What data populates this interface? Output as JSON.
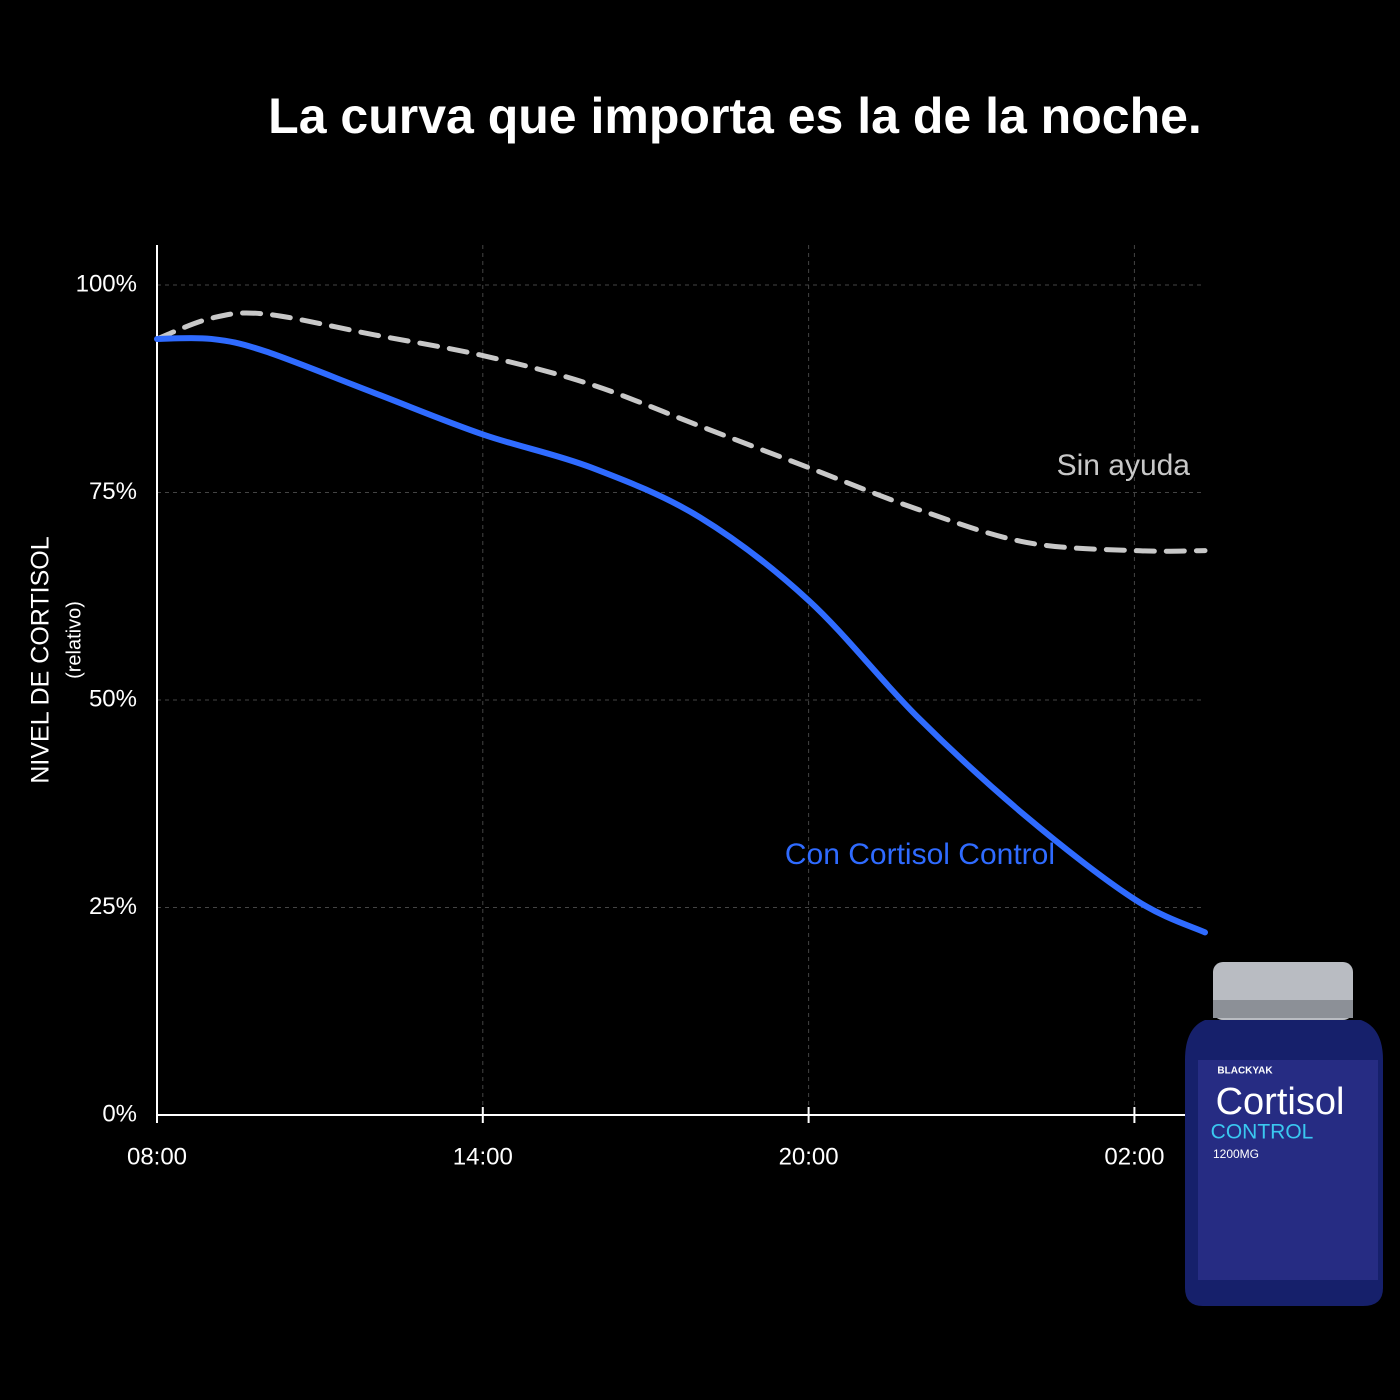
{
  "chart_data": {
    "type": "line",
    "title": "La curva que importa es la de la noche.",
    "y_label": "NIVEL DE CORTISOL",
    "y_sublabel": "(relativo)",
    "x": [
      0,
      1,
      2,
      4,
      6,
      8,
      10,
      12,
      14,
      16,
      18,
      19.3
    ],
    "series": [
      {
        "name": "Sin ayuda",
        "color": "#c8c8c8",
        "dashed": true,
        "values": [
          93.5,
          96,
          96.5,
          94,
          91.5,
          88,
          83,
          78,
          73,
          69,
          68,
          68
        ]
      },
      {
        "name": "Con Cortisol Control",
        "color": "#2f6bff",
        "dashed": false,
        "values": [
          93.5,
          93.5,
          92,
          87,
          82,
          78,
          72,
          62,
          48,
          36,
          26,
          22
        ]
      }
    ],
    "xlim": [
      0,
      19.3
    ],
    "ylim": [
      0,
      100
    ],
    "xticks": [
      {
        "value": 0,
        "label": "08:00"
      },
      {
        "value": 6,
        "label": "14:00"
      },
      {
        "value": 12,
        "label": "20:00"
      },
      {
        "value": 18,
        "label": "02:00"
      }
    ],
    "yticks": [
      {
        "value": 0,
        "label": "0%"
      },
      {
        "value": 25,
        "label": "25%"
      },
      {
        "value": 50,
        "label": "50%"
      },
      {
        "value": 75,
        "label": "75%"
      },
      {
        "value": 100,
        "label": "100%"
      }
    ],
    "grid": true
  },
  "product": {
    "brand": "BLACKYAK",
    "name": "Cortisol",
    "subname": "CONTROL",
    "dose": "1200MG"
  }
}
